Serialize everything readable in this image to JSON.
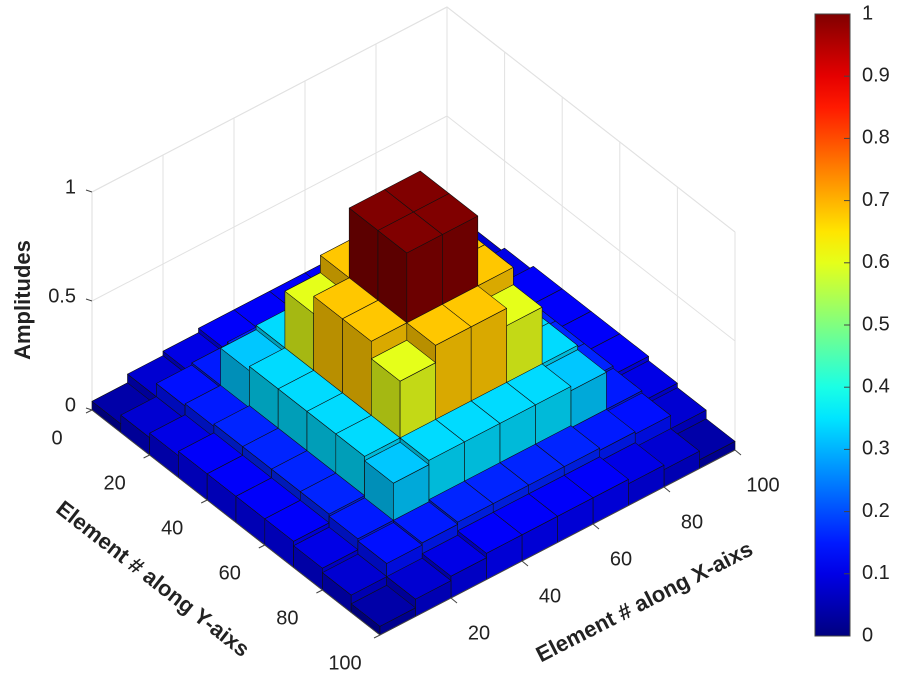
{
  "chart_data": {
    "type": "bar3",
    "xlabel": "Element # along X-aixs",
    "ylabel": "Element # along Y-aixs",
    "zlabel": "Amplitudes",
    "x_edges": [
      0,
      10,
      20,
      30,
      40,
      50,
      60,
      70,
      80,
      90,
      100
    ],
    "y_edges": [
      0,
      10,
      20,
      30,
      40,
      50,
      60,
      70,
      80,
      90,
      100
    ],
    "z": [
      [
        0.04,
        0.08,
        0.1,
        0.12,
        0.12,
        0.12,
        0.12,
        0.1,
        0.08,
        0.04
      ],
      [
        0.08,
        0.14,
        0.15,
        0.16,
        0.16,
        0.16,
        0.16,
        0.15,
        0.14,
        0.08
      ],
      [
        0.1,
        0.15,
        0.32,
        0.34,
        0.34,
        0.34,
        0.34,
        0.32,
        0.15,
        0.1
      ],
      [
        0.12,
        0.16,
        0.34,
        0.6,
        0.68,
        0.68,
        0.6,
        0.34,
        0.16,
        0.12
      ],
      [
        0.12,
        0.16,
        0.34,
        0.68,
        1,
        1,
        0.68,
        0.34,
        0.16,
        0.12
      ],
      [
        0.12,
        0.16,
        0.34,
        0.68,
        1,
        1,
        0.68,
        0.34,
        0.16,
        0.12
      ],
      [
        0.12,
        0.16,
        0.34,
        0.6,
        0.68,
        0.68,
        0.6,
        0.34,
        0.16,
        0.12
      ],
      [
        0.1,
        0.15,
        0.32,
        0.34,
        0.34,
        0.34,
        0.34,
        0.32,
        0.15,
        0.1
      ],
      [
        0.08,
        0.14,
        0.15,
        0.16,
        0.16,
        0.16,
        0.16,
        0.15,
        0.14,
        0.08
      ],
      [
        0.04,
        0.08,
        0.1,
        0.12,
        0.12,
        0.12,
        0.12,
        0.1,
        0.08,
        0.04
      ]
    ],
    "xlim": [
      0,
      100
    ],
    "ylim": [
      0,
      100
    ],
    "zlim": [
      0,
      1
    ],
    "xticks": [
      20,
      40,
      60,
      80,
      100
    ],
    "yticks": [
      0,
      20,
      40,
      60,
      80,
      100
    ],
    "zticks": [
      0,
      0.5,
      1
    ],
    "grid": true,
    "colormap": "jet",
    "colorbar": {
      "lim": [
        0,
        1
      ],
      "ticks": [
        0,
        0.1,
        0.2,
        0.3,
        0.4,
        0.5,
        0.6,
        0.7,
        0.8,
        0.9,
        1
      ]
    }
  }
}
